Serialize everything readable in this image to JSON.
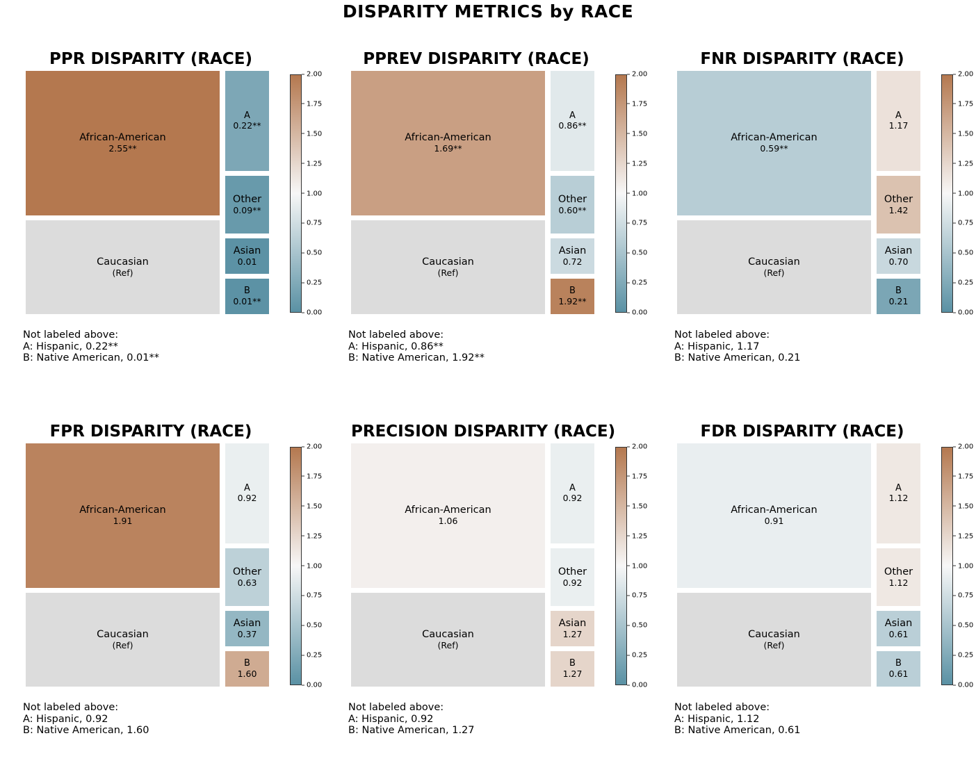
{
  "suptitle": "DISPARITY METRICS by RACE",
  "colorbar": {
    "min": 0,
    "max": 2,
    "center": 1,
    "ticks": [
      "0.00",
      "0.25",
      "0.50",
      "0.75",
      "1.00",
      "1.25",
      "1.50",
      "1.75",
      "2.00"
    ],
    "colors": {
      "low": "#5a91a4",
      "mid": "#f7f7f7",
      "high": "#b4784f",
      "ref": "#dcdcdc"
    }
  },
  "note_header": "Not labeled above:",
  "chart_data": [
    {
      "type": "treemap",
      "title": "PPR DISPARITY (RACE)",
      "groups": [
        {
          "label": "African-American",
          "value_text": "2.55**",
          "value": 2.55
        },
        {
          "label": "Caucasian",
          "value_text": "(Ref)",
          "value": null,
          "ref": true
        },
        {
          "label": "A",
          "value_text": "0.22**",
          "value": 0.22
        },
        {
          "label": "Other",
          "value_text": "0.09**",
          "value": 0.09
        },
        {
          "label": "Asian",
          "value_text": "0.01",
          "value": 0.01
        },
        {
          "label": "B",
          "value_text": "0.01**",
          "value": 0.01
        }
      ],
      "notes": [
        "A: Hispanic, 0.22**",
        "B: Native American, 0.01**"
      ]
    },
    {
      "type": "treemap",
      "title": "PPREV DISPARITY (RACE)",
      "groups": [
        {
          "label": "African-American",
          "value_text": "1.69**",
          "value": 1.69
        },
        {
          "label": "Caucasian",
          "value_text": "(Ref)",
          "value": null,
          "ref": true
        },
        {
          "label": "A",
          "value_text": "0.86**",
          "value": 0.86
        },
        {
          "label": "Other",
          "value_text": "0.60**",
          "value": 0.6
        },
        {
          "label": "Asian",
          "value_text": "0.72",
          "value": 0.72
        },
        {
          "label": "B",
          "value_text": "1.92**",
          "value": 1.92
        }
      ],
      "notes": [
        "A: Hispanic, 0.86**",
        "B: Native American, 1.92**"
      ]
    },
    {
      "type": "treemap",
      "title": "FNR DISPARITY (RACE)",
      "groups": [
        {
          "label": "African-American",
          "value_text": "0.59**",
          "value": 0.59
        },
        {
          "label": "Caucasian",
          "value_text": "(Ref)",
          "value": null,
          "ref": true
        },
        {
          "label": "A",
          "value_text": "1.17",
          "value": 1.17
        },
        {
          "label": "Other",
          "value_text": "1.42",
          "value": 1.42
        },
        {
          "label": "Asian",
          "value_text": "0.70",
          "value": 0.7
        },
        {
          "label": "B",
          "value_text": "0.21",
          "value": 0.21
        }
      ],
      "notes": [
        "A: Hispanic, 1.17",
        "B: Native American, 0.21"
      ]
    },
    {
      "type": "treemap",
      "title": "FPR DISPARITY (RACE)",
      "groups": [
        {
          "label": "African-American",
          "value_text": "1.91",
          "value": 1.91
        },
        {
          "label": "Caucasian",
          "value_text": "(Ref)",
          "value": null,
          "ref": true
        },
        {
          "label": "A",
          "value_text": "0.92",
          "value": 0.92
        },
        {
          "label": "Other",
          "value_text": "0.63",
          "value": 0.63
        },
        {
          "label": "Asian",
          "value_text": "0.37",
          "value": 0.37
        },
        {
          "label": "B",
          "value_text": "1.60",
          "value": 1.6
        }
      ],
      "notes": [
        "A: Hispanic, 0.92",
        "B: Native American, 1.60"
      ]
    },
    {
      "type": "treemap",
      "title": "PRECISION DISPARITY (RACE)",
      "groups": [
        {
          "label": "African-American",
          "value_text": "1.06",
          "value": 1.06
        },
        {
          "label": "Caucasian",
          "value_text": "(Ref)",
          "value": null,
          "ref": true
        },
        {
          "label": "A",
          "value_text": "0.92",
          "value": 0.92
        },
        {
          "label": "Other",
          "value_text": "0.92",
          "value": 0.92
        },
        {
          "label": "Asian",
          "value_text": "1.27",
          "value": 1.27
        },
        {
          "label": "B",
          "value_text": "1.27",
          "value": 1.27
        }
      ],
      "notes": [
        "A: Hispanic, 0.92",
        "B: Native American, 1.27"
      ]
    },
    {
      "type": "treemap",
      "title": "FDR DISPARITY (RACE)",
      "groups": [
        {
          "label": "African-American",
          "value_text": "0.91",
          "value": 0.91
        },
        {
          "label": "Caucasian",
          "value_text": "(Ref)",
          "value": null,
          "ref": true
        },
        {
          "label": "A",
          "value_text": "1.12",
          "value": 1.12
        },
        {
          "label": "Other",
          "value_text": "1.12",
          "value": 1.12
        },
        {
          "label": "Asian",
          "value_text": "0.61",
          "value": 0.61
        },
        {
          "label": "B",
          "value_text": "0.61",
          "value": 0.61
        }
      ],
      "notes": [
        "A: Hispanic, 1.12",
        "B: Native American, 0.61"
      ]
    }
  ]
}
